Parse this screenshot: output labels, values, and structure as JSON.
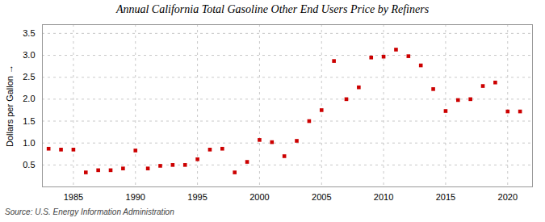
{
  "chart_data": {
    "type": "scatter",
    "title": "Annual California Total Gasoline Other End Users Price by Refiners",
    "ylabel": "Dollars per Gallon",
    "source": "Source: U.S. Energy Information Administration",
    "x": [
      1983,
      1984,
      1985,
      1986,
      1987,
      1988,
      1989,
      1990,
      1991,
      1992,
      1993,
      1994,
      1995,
      1996,
      1997,
      1998,
      1999,
      2000,
      2001,
      2002,
      2003,
      2004,
      2005,
      2006,
      2007,
      2008,
      2009,
      2010,
      2011,
      2012,
      2013,
      2014,
      2015,
      2016,
      2017,
      2018,
      2019,
      2020,
      2021
    ],
    "values": [
      0.87,
      0.85,
      0.85,
      0.33,
      0.38,
      0.38,
      0.42,
      0.83,
      0.42,
      0.48,
      0.5,
      0.5,
      0.63,
      0.85,
      0.87,
      0.33,
      0.57,
      1.07,
      1.02,
      0.7,
      1.05,
      1.5,
      1.75,
      2.87,
      2.0,
      2.27,
      2.95,
      2.97,
      3.13,
      2.98,
      2.77,
      2.23,
      1.73,
      1.98,
      2.0,
      2.3,
      2.38,
      1.72,
      1.72
    ],
    "color": "#cc0000",
    "marker": "square",
    "xlim": [
      1982.5,
      2022
    ],
    "xticks": [
      1985,
      1990,
      1995,
      2000,
      2005,
      2010,
      2015,
      2020
    ],
    "ylim": [
      0.0,
      3.7
    ],
    "yticks": [
      0.5,
      {
        "value": 1.0,
        "label": "1.0"
      },
      1.5,
      {
        "value": 2.0,
        "label": "2.0"
      },
      2.5,
      {
        "value": 3.0,
        "label": "3.0"
      },
      3.5
    ],
    "grid": true
  }
}
